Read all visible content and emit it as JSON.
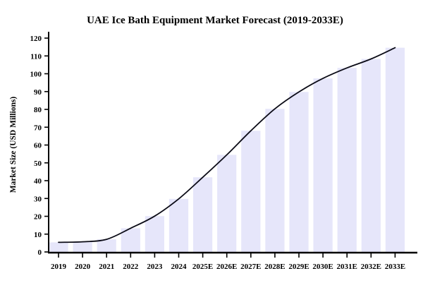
{
  "title": "UAE Ice Bath Equipment Market Forecast (2019-2033E)",
  "chart_data": {
    "type": "bar",
    "overlay_line": "smoothed line of the same series drawn over the bars",
    "categories": [
      "2019",
      "2020",
      "2021",
      "2022",
      "2023",
      "2024",
      "2025E",
      "2026E",
      "2027E",
      "2028E",
      "2029E",
      "2030E",
      "2031E",
      "2032E",
      "2033E"
    ],
    "values": [
      5.4,
      5.7,
      7.1,
      13.3,
      20.1,
      29.8,
      41.9,
      54.5,
      68.0,
      80.3,
      89.8,
      97.4,
      103.3,
      108.3,
      114.6
    ],
    "title": "UAE Ice Bath Equipment Market Forecast (2019-2033E)",
    "xlabel": "",
    "ylabel": "Market Size (USD Millions)",
    "ylim": [
      0,
      120
    ],
    "yticks": [
      0,
      10,
      20,
      30,
      40,
      50,
      60,
      70,
      80,
      90,
      100,
      110,
      120
    ],
    "grid": false,
    "legend_position": "none",
    "colors": {
      "bar_fill": "#E6E6FA",
      "line": "#0b0b16",
      "axis": "#000000",
      "text": "#000000",
      "background": "#ffffff"
    }
  }
}
